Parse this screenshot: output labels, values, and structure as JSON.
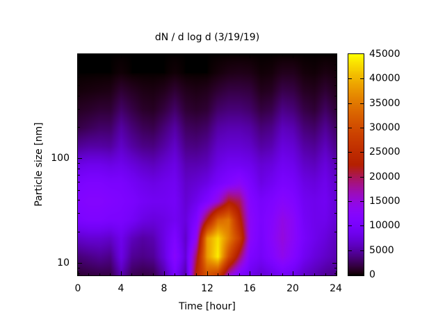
{
  "chart_data": {
    "type": "heatmap",
    "title": "dN / d log d (3/19/19)",
    "xlabel": "Time [hour]",
    "ylabel": "Particle size [nm]",
    "xlim": [
      0,
      24
    ],
    "ylim": [
      7.7,
      1000
    ],
    "y_log": true,
    "x_major_ticks": [
      0,
      4,
      8,
      12,
      16,
      20,
      24
    ],
    "x_minor_step": 1,
    "y_major_ticks": [
      10,
      100
    ],
    "y_minor_ticks": [
      8,
      9,
      20,
      30,
      40,
      50,
      60,
      70,
      80,
      90,
      200,
      300,
      400,
      500,
      600,
      700,
      800,
      900
    ],
    "x_hours": [
      0,
      1,
      2,
      3,
      4,
      5,
      6,
      7,
      8,
      9,
      10,
      11,
      12,
      13,
      14,
      15,
      16,
      17,
      18,
      19,
      20,
      21,
      22,
      23,
      24
    ],
    "sizes_nm": [
      1000,
      667,
      444,
      296,
      198,
      132,
      88,
      59,
      39,
      26,
      17.4,
      11.6,
      7.7
    ],
    "values": [
      [
        0,
        0,
        0,
        0,
        0,
        0,
        0,
        0,
        0,
        0,
        0,
        0,
        0,
        0,
        0,
        0,
        0,
        0,
        0,
        0,
        0,
        0,
        0,
        0,
        0
      ],
      [
        0,
        0,
        0,
        0,
        200,
        0,
        0,
        0,
        0,
        200,
        0,
        0,
        0,
        300,
        600,
        700,
        600,
        200,
        300,
        800,
        800,
        300,
        200,
        500,
        300
      ],
      [
        300,
        400,
        500,
        600,
        1500,
        1000,
        600,
        500,
        800,
        1500,
        800,
        600,
        800,
        1500,
        2000,
        2000,
        1800,
        800,
        1000,
        2200,
        2000,
        1000,
        800,
        1500,
        800
      ],
      [
        1000,
        1200,
        1500,
        1500,
        3000,
        2000,
        1200,
        1000,
        1800,
        3000,
        1500,
        1200,
        1500,
        3000,
        3500,
        3500,
        3000,
        1800,
        2200,
        4000,
        3500,
        2000,
        1500,
        2800,
        1500
      ],
      [
        2000,
        2500,
        3000,
        3000,
        5000,
        3500,
        2500,
        2200,
        3500,
        5000,
        2800,
        2500,
        3000,
        5000,
        5500,
        5500,
        5000,
        3500,
        4000,
        6000,
        5500,
        3500,
        3000,
        4500,
        2800
      ],
      [
        4500,
        5000,
        5000,
        4800,
        6500,
        5000,
        4000,
        3800,
        5000,
        6500,
        4000,
        3800,
        4500,
        6500,
        7000,
        7000,
        6500,
        5000,
        5500,
        7500,
        7000,
        5000,
        4500,
        6000,
        4000
      ],
      [
        8000,
        8500,
        8500,
        8000,
        8500,
        7500,
        6500,
        6000,
        7000,
        8000,
        5500,
        5500,
        6000,
        8000,
        9000,
        9000,
        8500,
        7000,
        7500,
        9000,
        8500,
        6500,
        6000,
        7500,
        5500
      ],
      [
        10500,
        11000,
        11000,
        10500,
        10500,
        9500,
        8500,
        8000,
        8500,
        9000,
        6500,
        7000,
        8000,
        10000,
        11500,
        13000,
        10500,
        8000,
        9000,
        10500,
        10000,
        8000,
        7500,
        8500,
        6500
      ],
      [
        11500,
        12000,
        12000,
        11500,
        11000,
        10500,
        9500,
        9000,
        9000,
        9500,
        7000,
        8500,
        11000,
        15000,
        22000,
        20000,
        12000,
        10000,
        11000,
        12500,
        11500,
        9000,
        8500,
        9000,
        7000
      ],
      [
        10500,
        11000,
        11000,
        10500,
        10500,
        9500,
        8000,
        7500,
        8000,
        9000,
        7500,
        11000,
        22000,
        33000,
        35000,
        24000,
        13000,
        10500,
        12000,
        14500,
        13000,
        9500,
        8500,
        8500,
        7000
      ],
      [
        6500,
        7000,
        7000,
        6500,
        8500,
        6000,
        5000,
        5500,
        8000,
        11000,
        6500,
        14000,
        38000,
        43000,
        36000,
        28000,
        13000,
        10000,
        12500,
        15000,
        13000,
        10000,
        8500,
        7500,
        6000
      ],
      [
        3500,
        4000,
        4500,
        4000,
        8000,
        4500,
        4000,
        4500,
        7500,
        12500,
        7000,
        20000,
        38000,
        44000,
        30000,
        20000,
        11000,
        9500,
        11500,
        14000,
        12000,
        9000,
        7500,
        6500,
        5500
      ],
      [
        1500,
        1800,
        2000,
        2000,
        5500,
        2500,
        2000,
        2200,
        5000,
        10000,
        5000,
        24000,
        31000,
        28000,
        16000,
        11000,
        8500,
        7000,
        8000,
        9500,
        8500,
        6500,
        5500,
        4500,
        4000
      ]
    ],
    "colorbar": {
      "min": 0,
      "max": 45000,
      "ticks": [
        0,
        5000,
        10000,
        15000,
        20000,
        25000,
        30000,
        35000,
        40000,
        45000
      ],
      "palette_name": "gnuplot pm3d (black-violet-red-yellow)",
      "palette_stops": {
        "0.00": "#000000",
        "0.25": "#8004ff",
        "0.50": "#b52000",
        "0.75": "#dd6c00",
        "1.00": "#ffff00"
      }
    }
  }
}
